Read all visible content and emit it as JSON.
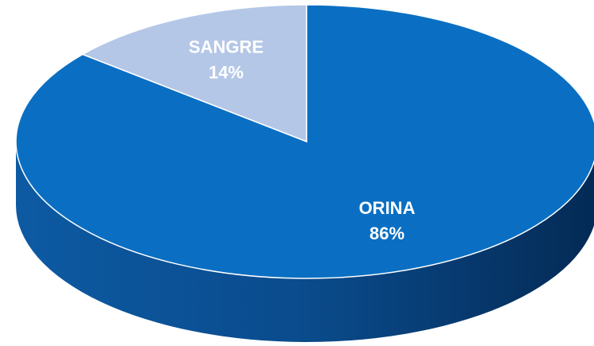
{
  "chart_data": {
    "type": "pie",
    "categories": [
      "ORINA",
      "SANGRE"
    ],
    "values": [
      86,
      14
    ],
    "value_labels": [
      "86%",
      "14%"
    ],
    "colors": [
      "#0a6fc2",
      "#b4c7e7"
    ]
  }
}
